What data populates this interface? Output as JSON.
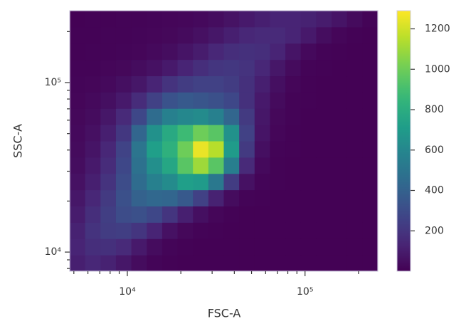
{
  "chart_data": {
    "type": "hist2d",
    "xlabel": "FSC-A",
    "ylabel": "SSC-A",
    "xscale": "log",
    "yscale": "log",
    "colormap": "viridis",
    "xlim": [
      4740,
      256700
    ],
    "ylim": [
      7710,
      265600
    ],
    "xticks": [
      {
        "value": 10000,
        "label": "10⁴"
      },
      {
        "value": 100000,
        "label": "10⁵"
      }
    ],
    "yticks": [
      {
        "value": 10000,
        "label": "10⁴"
      },
      {
        "value": 100000,
        "label": "10⁵"
      }
    ],
    "xminorticks": [
      5000,
      6000,
      7000,
      8000,
      9000,
      20000,
      30000,
      40000,
      50000,
      60000,
      70000,
      80000,
      90000,
      200000
    ],
    "yminorticks": [
      8000,
      9000,
      20000,
      30000,
      40000,
      50000,
      60000,
      70000,
      80000,
      90000,
      200000
    ],
    "xbins": [
      4740,
      5787,
      7066,
      8627,
      10533,
      12860,
      15700,
      19170,
      23400,
      28570,
      34880,
      42590,
      52000,
      63480,
      77510,
      94630,
      115500,
      141100,
      172200,
      210300,
      256700
    ],
    "ybins": [
      7710,
      9619,
      12000,
      14970,
      18680,
      23300,
      29070,
      36270,
      45250,
      56450,
      70430,
      87870,
      109600,
      136800,
      170600,
      212900,
      265600
    ],
    "counts": [
      [
        110,
        140,
        120,
        80,
        40,
        15,
        8,
        5,
        5,
        5,
        5,
        5,
        5,
        5,
        5,
        5,
        5,
        5,
        5,
        5
      ],
      [
        130,
        170,
        180,
        150,
        90,
        40,
        15,
        8,
        5,
        5,
        5,
        5,
        5,
        5,
        5,
        5,
        5,
        5,
        5,
        5
      ],
      [
        120,
        190,
        230,
        240,
        200,
        130,
        60,
        25,
        10,
        6,
        5,
        5,
        5,
        5,
        5,
        5,
        5,
        5,
        5,
        5
      ],
      [
        100,
        170,
        240,
        300,
        320,
        280,
        200,
        110,
        50,
        20,
        8,
        5,
        5,
        5,
        5,
        5,
        5,
        5,
        5,
        5
      ],
      [
        80,
        140,
        220,
        320,
        400,
        430,
        420,
        360,
        250,
        120,
        40,
        12,
        6,
        5,
        5,
        5,
        5,
        5,
        5,
        5
      ],
      [
        60,
        110,
        190,
        300,
        450,
        560,
        620,
        720,
        700,
        520,
        230,
        60,
        15,
        6,
        5,
        5,
        5,
        5,
        5,
        5
      ],
      [
        45,
        90,
        160,
        280,
        480,
        640,
        760,
        950,
        1100,
        950,
        550,
        150,
        30,
        8,
        5,
        5,
        5,
        5,
        5,
        5
      ],
      [
        35,
        70,
        140,
        260,
        500,
        720,
        820,
        1000,
        1250,
        1150,
        700,
        220,
        50,
        12,
        6,
        5,
        5,
        5,
        5,
        5
      ],
      [
        30,
        55,
        110,
        210,
        420,
        650,
        780,
        880,
        1000,
        950,
        650,
        250,
        70,
        20,
        8,
        5,
        5,
        5,
        5,
        5
      ],
      [
        25,
        40,
        80,
        150,
        280,
        450,
        560,
        600,
        620,
        560,
        420,
        220,
        80,
        25,
        10,
        5,
        5,
        5,
        5,
        5
      ],
      [
        20,
        30,
        50,
        90,
        160,
        250,
        330,
        360,
        340,
        320,
        280,
        180,
        90,
        35,
        12,
        6,
        5,
        5,
        5,
        5
      ],
      [
        15,
        20,
        30,
        50,
        80,
        130,
        190,
        230,
        250,
        250,
        230,
        180,
        110,
        50,
        20,
        8,
        5,
        5,
        5,
        5
      ],
      [
        10,
        12,
        18,
        25,
        40,
        60,
        90,
        130,
        170,
        200,
        210,
        190,
        140,
        80,
        35,
        12,
        6,
        5,
        5,
        5
      ],
      [
        8,
        10,
        12,
        15,
        20,
        30,
        45,
        70,
        100,
        140,
        170,
        180,
        170,
        130,
        70,
        30,
        12,
        6,
        5,
        5
      ],
      [
        6,
        8,
        10,
        12,
        14,
        18,
        25,
        35,
        55,
        80,
        110,
        140,
        150,
        150,
        130,
        90,
        45,
        20,
        8,
        5
      ],
      [
        5,
        6,
        8,
        10,
        12,
        14,
        18,
        22,
        30,
        45,
        65,
        90,
        110,
        130,
        130,
        120,
        100,
        70,
        35,
        12
      ]
    ],
    "clim": [
      0,
      1290
    ],
    "cticks": [
      200,
      400,
      600,
      800,
      1000,
      1200
    ]
  }
}
